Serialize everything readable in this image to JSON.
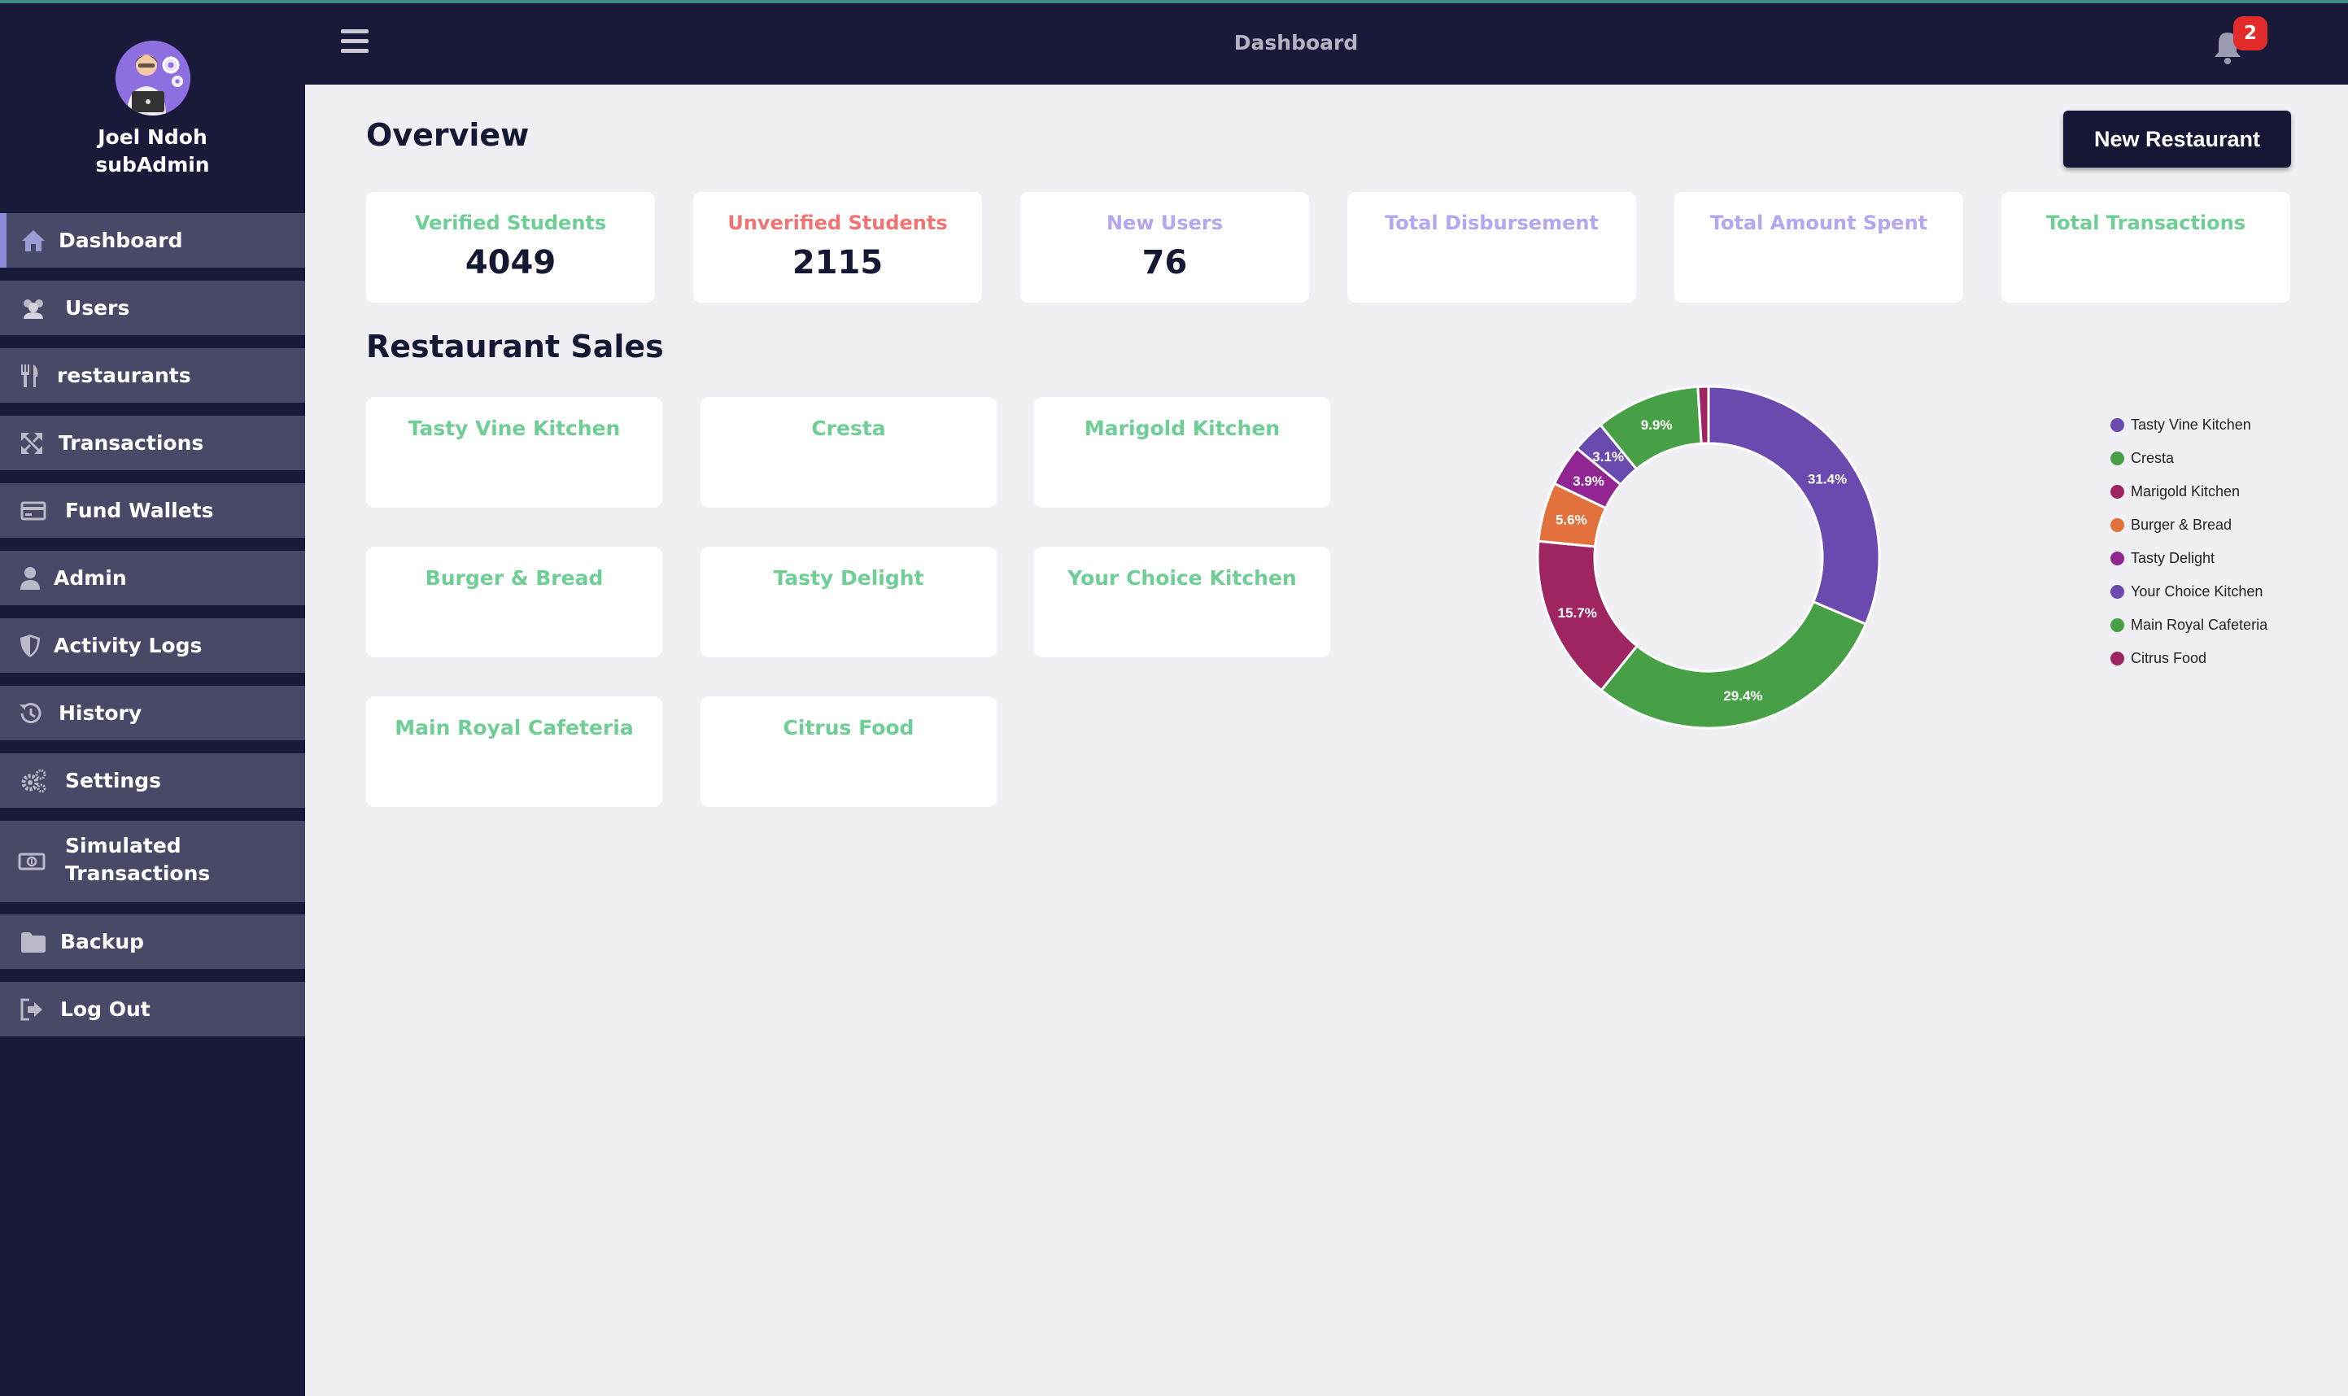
{
  "header": {
    "title": "Dashboard",
    "notifications": "2"
  },
  "profile": {
    "name": "Joel Ndoh",
    "role": "subAdmin"
  },
  "sidebar": {
    "items": [
      {
        "label": "Dashboard",
        "icon": "home-icon"
      },
      {
        "label": "Users",
        "icon": "users-icon"
      },
      {
        "label": "restaurants",
        "icon": "fork-knife-icon"
      },
      {
        "label": "Transactions",
        "icon": "transactions-icon"
      },
      {
        "label": "Fund Wallets",
        "icon": "card-icon"
      },
      {
        "label": "Admin",
        "icon": "user-icon"
      },
      {
        "label": "Activity Logs",
        "icon": "shield-icon"
      },
      {
        "label": "History",
        "icon": "history-icon"
      },
      {
        "label": "Settings",
        "icon": "gears-icon"
      },
      {
        "label": "Simulated Transactions",
        "icon": "money-icon"
      },
      {
        "label": "Backup",
        "icon": "folder-icon"
      },
      {
        "label": "Log Out",
        "icon": "logout-icon"
      }
    ]
  },
  "main": {
    "overview_title": "Overview",
    "new_button": "New Restaurant",
    "stats": [
      {
        "label": "Verified Students",
        "value": "4049",
        "color": "#6fce95"
      },
      {
        "label": "Unverified Students",
        "value": "2115",
        "color": "#ef7474"
      },
      {
        "label": "New Users",
        "value": "76",
        "color": "#b6a5ef"
      },
      {
        "label": "Total Disbursement",
        "value": "",
        "color": "#b6a5ef"
      },
      {
        "label": "Total Amount Spent",
        "value": "",
        "color": "#b6a5ef"
      },
      {
        "label": "Total Transactions",
        "value": "",
        "color": "#6fce95"
      }
    ],
    "sales_title": "Restaurant Sales",
    "restaurants": [
      {
        "label": "Tasty Vine Kitchen",
        "value": ""
      },
      {
        "label": "Cresta",
        "value": ""
      },
      {
        "label": "Marigold Kitchen",
        "value": ""
      },
      {
        "label": "Burger & Bread",
        "value": ""
      },
      {
        "label": "Tasty Delight",
        "value": ""
      },
      {
        "label": "Your Choice Kitchen",
        "value": ""
      },
      {
        "label": "Main Royal Cafeteria",
        "value": ""
      },
      {
        "label": "Citrus Food",
        "value": ""
      }
    ]
  },
  "chart_data": {
    "type": "pie",
    "categories": [
      "Tasty Vine Kitchen",
      "Cresta",
      "Marigold Kitchen",
      "Burger & Bread",
      "Tasty Delight",
      "Your Choice Kitchen",
      "Main Royal Cafeteria",
      "Citrus Food"
    ],
    "values": [
      31.4,
      29.4,
      15.7,
      5.6,
      3.9,
      3.1,
      9.9,
      1.0
    ],
    "labels": [
      "31.4%",
      "29.4%",
      "15.7%",
      "5.6%",
      "3.9%",
      "3.1%",
      "9.9%",
      ""
    ],
    "colors": [
      "#6b4aaf",
      "#48a046",
      "#9e2560",
      "#e2713d",
      "#912693",
      "#6b4aaf",
      "#48a046",
      "#9e2560"
    ],
    "legend": "right"
  }
}
